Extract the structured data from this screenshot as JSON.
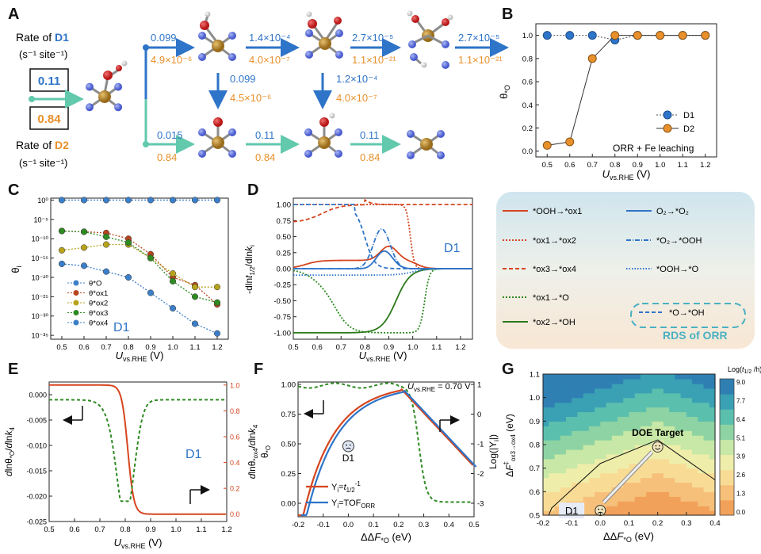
{
  "panel_labels": [
    "A",
    "B",
    "C",
    "D",
    "E",
    "F",
    "G"
  ],
  "colors": {
    "blue": "#2e74c8",
    "orange": "#e8902b",
    "teal": "#62c9ad",
    "red": "#d6451f",
    "darkred": "#b8441e",
    "gold": "#b7a21c",
    "green": "#2c7a1a",
    "dgreen": "#2e8a22",
    "lblue": "#3c7fc9",
    "atom_fe": "#b8892c",
    "atom_n": "#6679d8",
    "atom_o": "#d42a2a"
  },
  "panelA": {
    "d1_rate_title": "Rate of D1",
    "d1_rate_unit": "(s⁻¹ site⁻¹)",
    "d1_rate_value": "0.11",
    "d2_rate_title": "Rate of D2",
    "d2_rate_unit": "(s⁻¹ site⁻¹)",
    "d2_rate_value": "0.84",
    "top_labels": [
      {
        "blue": "0.099",
        "orange": "4.9×10⁻⁶"
      },
      {
        "blue": "1.4×10⁻⁴",
        "orange": "4.0×10⁻⁷"
      },
      {
        "blue": "2.7×10⁻⁵",
        "orange": "1.1×10⁻²¹"
      },
      {
        "blue": "2.7×10⁻⁵",
        "orange": "1.1×10⁻²¹"
      }
    ],
    "down_labels": [
      {
        "blue": "0.099",
        "orange": "4.5×10⁻⁶"
      },
      {
        "blue": "1.2×10⁻⁴",
        "orange": "4.0×10⁻⁷"
      }
    ],
    "bottom_labels": [
      {
        "blue": "0.015",
        "orange": "0.84"
      },
      {
        "blue": "0.11",
        "orange": "0.84"
      },
      {
        "blue": "0.11",
        "orange": "0.84"
      }
    ]
  },
  "chart_data": [
    {
      "panel": "B",
      "type": "line",
      "title": "",
      "xlabel": "U vs.RHE (V)",
      "ylabel": "θ*O",
      "annotation": "ORR + Fe leaching",
      "x": [
        0.5,
        0.6,
        0.7,
        0.8,
        0.9,
        1.0,
        1.1,
        1.2
      ],
      "xlim": [
        0.45,
        1.25
      ],
      "ylim": [
        -0.05,
        1.1
      ],
      "xticks": [
        "0.5",
        "0.6",
        "0.7",
        "0.8",
        "0.9",
        "1.0",
        "1.1",
        "1.2"
      ],
      "yticks": [
        "0.0",
        "0.2",
        "0.4",
        "0.6",
        "0.8",
        "1.0"
      ],
      "series": [
        {
          "name": "D1",
          "values": [
            1.0,
            1.0,
            1.0,
            0.96,
            1.0,
            1.0,
            1.0,
            1.0
          ]
        },
        {
          "name": "D2",
          "values": [
            0.05,
            0.08,
            0.8,
            1.0,
            1.0,
            1.0,
            1.0,
            1.0
          ]
        }
      ]
    },
    {
      "panel": "C",
      "type": "line",
      "xlabel": "U vs.RHE (V)",
      "ylabel": "θi",
      "annotation": "D1",
      "x": [
        0.5,
        0.6,
        0.7,
        0.8,
        0.9,
        1.0,
        1.1,
        1.2
      ],
      "xticks": [
        "0.5",
        "0.6",
        "0.7",
        "0.8",
        "0.9",
        "1.0",
        "1.1",
        "1.2"
      ],
      "yticks": [
        "10⁰",
        "10⁻⁵",
        "10⁻¹⁰",
        "10⁻¹⁵",
        "10⁻²⁰",
        "10⁻²⁵",
        "10⁻³⁰",
        "10⁻³⁵"
      ],
      "ylim_log10": [
        -36,
        0.5
      ],
      "series": [
        {
          "name": "θ*O",
          "values": [
            0,
            0,
            0,
            0,
            0,
            0,
            0,
            0
          ]
        },
        {
          "name": "θ*ox1",
          "values": [
            -8,
            -8.2,
            -8.5,
            -10,
            -14,
            -20,
            -22,
            -27
          ]
        },
        {
          "name": "θ*ox2",
          "values": [
            -13,
            -12.3,
            -11.5,
            -11.5,
            -15,
            -19,
            -22.5,
            -22.5
          ]
        },
        {
          "name": "θ*ox3",
          "values": [
            -8,
            -8.2,
            -9.5,
            -11,
            -15,
            -21,
            -25,
            -26.5
          ]
        },
        {
          "name": "θ*ox4",
          "values": [
            -16.5,
            -17,
            -18.5,
            -20,
            -24,
            -28,
            -32,
            -34.5
          ]
        }
      ]
    },
    {
      "panel": "D",
      "type": "line",
      "xlabel": "U vs.RHE (V)",
      "ylabel": "-dlnt1/2/dlnki",
      "annotation": "D1",
      "xticks": [
        "0.5",
        "0.6",
        "0.7",
        "0.8",
        "0.9",
        "1.0",
        "1.1",
        "1.2"
      ],
      "yticks": [
        "-1.00",
        "-0.75",
        "-0.50",
        "-0.25",
        "0.00",
        "0.25",
        "0.50",
        "0.75",
        "1.00"
      ],
      "xlim": [
        0.5,
        1.25
      ],
      "ylim": [
        -1.1,
        1.1
      ],
      "legend_title": "RDS of ORR",
      "legend": [
        "*OOH→*ox1",
        "O₂→*O₂",
        "*ox1→*ox2",
        "*O₂→*OOH",
        "*ox3→*ox4",
        "*OOH→*O",
        "*ox1→*O",
        "*O→*OH",
        "*ox2→*OH"
      ]
    },
    {
      "panel": "E",
      "type": "line",
      "xlabel": "U vs.RHE (V)",
      "ylabel": "dlnθ*O/dlnk4",
      "ylabel_right": "dlnθ*ox4/dlnk4",
      "annotation": "D1",
      "xticks": [
        "0.5",
        "0.6",
        "0.7",
        "0.8",
        "0.9",
        "1.0",
        "1.1",
        "1.2"
      ],
      "yticks": [
        "-0.025",
        "-0.020",
        "-0.015",
        "-0.010",
        "-0.005",
        "0.000"
      ],
      "yticks_right": [
        "0.0",
        "0.2",
        "0.4",
        "0.6",
        "0.8",
        "1.0"
      ]
    },
    {
      "panel": "F",
      "type": "line",
      "xlabel": "ΔΔF*O (eV)",
      "ylabel": "θ*O",
      "ylabel_right": "Log(|Yi|)",
      "annotation": "U vs.RHE = 0.70 V",
      "point_label": "D1",
      "xticks": [
        "-0.2",
        "-0.1",
        "0.0",
        "0.1",
        "0.2",
        "0.3",
        "0.4",
        "0.5"
      ],
      "yticks": [
        "0.00",
        "0.25",
        "0.50",
        "0.75",
        "1.00"
      ],
      "yticks_right": [
        "-3",
        "-2",
        "-1",
        "0",
        "1"
      ],
      "legend": [
        "Yi=t1/2⁻¹",
        "Yi=TOF ORR"
      ]
    },
    {
      "panel": "G",
      "type": "heatmap",
      "xlabel": "ΔΔF*O (eV)",
      "ylabel": "ΔF‡ ox3→ox4 (eV)",
      "colorbar_title": "Log(t1/2 /h)",
      "colorbar_ticks": [
        "9.0",
        "7.7",
        "6.4",
        "5.1",
        "3.9",
        "2.6",
        "1.3",
        "0.0"
      ],
      "xticks": [
        "-0.2",
        "-0.1",
        "0.0",
        "0.1",
        "0.2",
        "0.3",
        "0.4"
      ],
      "yticks": [
        "0.5",
        "0.6",
        "0.7",
        "0.8",
        "0.9",
        "1.0",
        "1.1"
      ],
      "target_label": "DOE Target",
      "point_label": "D1"
    }
  ]
}
